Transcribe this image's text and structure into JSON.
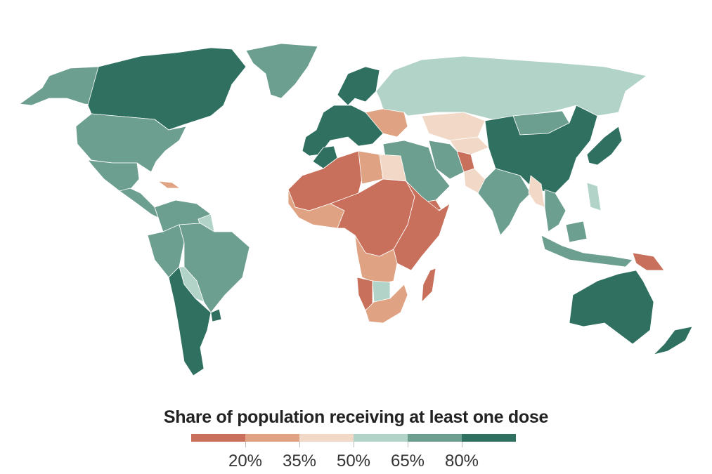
{
  "chart_data": {
    "type": "choropleth",
    "title": "Share of population receiving at least one dose",
    "legend": {
      "bins": [
        {
          "range": "<20%",
          "color": "#c8705b"
        },
        {
          "range": "20–35%",
          "color": "#dfa384"
        },
        {
          "range": "35–50%",
          "color": "#f2d9c7"
        },
        {
          "range": "50–65%",
          "color": "#b2d3c7"
        },
        {
          "range": "65–80%",
          "color": "#6d9f90"
        },
        {
          "range": ">80%",
          "color": "#2f7060"
        }
      ],
      "tick_labels": [
        "20%",
        "35%",
        "50%",
        "65%",
        "80%"
      ]
    },
    "regions": [
      {
        "id": "alaska",
        "bin": 4
      },
      {
        "id": "canada",
        "bin": 5
      },
      {
        "id": "greenland",
        "bin": 4
      },
      {
        "id": "usa",
        "bin": 4
      },
      {
        "id": "mexico",
        "bin": 4
      },
      {
        "id": "central-america",
        "bin": 4
      },
      {
        "id": "caribbean",
        "bin": 1
      },
      {
        "id": "colombia-venezuela",
        "bin": 4
      },
      {
        "id": "guianas",
        "bin": 3
      },
      {
        "id": "brazil",
        "bin": 4
      },
      {
        "id": "peru",
        "bin": 4
      },
      {
        "id": "bolivia-paraguay",
        "bin": 3
      },
      {
        "id": "chile-argentina",
        "bin": 5
      },
      {
        "id": "uruguay",
        "bin": 5
      },
      {
        "id": "western-europe",
        "bin": 5
      },
      {
        "id": "scandinavia",
        "bin": 5
      },
      {
        "id": "eastern-europe",
        "bin": 1
      },
      {
        "id": "russia",
        "bin": 3
      },
      {
        "id": "kazakhstan",
        "bin": 2
      },
      {
        "id": "middle-east",
        "bin": 4
      },
      {
        "id": "iran",
        "bin": 4
      },
      {
        "id": "afghanistan",
        "bin": 0
      },
      {
        "id": "central-asia",
        "bin": 2
      },
      {
        "id": "mongolia",
        "bin": 4
      },
      {
        "id": "china",
        "bin": 5
      },
      {
        "id": "japan-korea",
        "bin": 5
      },
      {
        "id": "india",
        "bin": 4
      },
      {
        "id": "pakistan",
        "bin": 2
      },
      {
        "id": "southeast-asia",
        "bin": 4
      },
      {
        "id": "myanmar",
        "bin": 2
      },
      {
        "id": "indonesia",
        "bin": 4
      },
      {
        "id": "png",
        "bin": 0
      },
      {
        "id": "philippines",
        "bin": 3
      },
      {
        "id": "australia",
        "bin": 5
      },
      {
        "id": "new-zealand",
        "bin": 5
      },
      {
        "id": "north-africa",
        "bin": 0
      },
      {
        "id": "morocco",
        "bin": 5
      },
      {
        "id": "egypt",
        "bin": 2
      },
      {
        "id": "libya",
        "bin": 1
      },
      {
        "id": "west-africa",
        "bin": 1
      },
      {
        "id": "central-africa",
        "bin": 0
      },
      {
        "id": "east-africa",
        "bin": 0
      },
      {
        "id": "yemen",
        "bin": 0
      },
      {
        "id": "angola-zambia",
        "bin": 1
      },
      {
        "id": "namibia",
        "bin": 0
      },
      {
        "id": "botswana",
        "bin": 3
      },
      {
        "id": "south-africa",
        "bin": 1
      },
      {
        "id": "madagascar",
        "bin": 0
      }
    ]
  }
}
